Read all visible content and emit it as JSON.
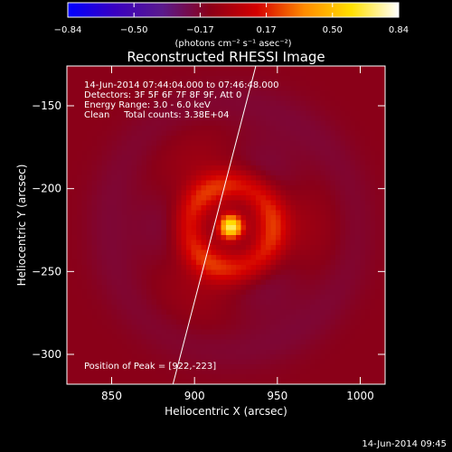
{
  "colorbar": {
    "tick_labels": [
      "−0.84",
      "−0.50",
      "−0.17",
      "0.17",
      "0.50",
      "0.84"
    ],
    "units": "(photons cm⁻² s⁻¹ asec⁻²)",
    "range": [
      -0.84,
      0.84
    ],
    "stops": [
      "#0000ff",
      "#3a00c0",
      "#5a1a8c",
      "#8a0018",
      "#d40000",
      "#ff8a00",
      "#ffe000",
      "#ffffff"
    ]
  },
  "image": {
    "title": "Reconstructed RHESSI Image",
    "annotations": [
      "14-Jun-2014 07:44:04.000 to 07:46:48.000",
      "Detectors: 3F 5F 6F 7F 8F 9F, Att 0",
      "Energy Range: 3.0 - 6.0 keV",
      "Clean     Total counts: 3.38E+04"
    ],
    "peak_text": "Position of Peak = [922,-223]"
  },
  "footer": {
    "timestamp": "14-Jun-2014 09:45"
  },
  "chart_data": {
    "type": "heatmap",
    "title": "Reconstructed RHESSI Image",
    "xlabel": "Heliocentric X (arcsec)",
    "ylabel": "Heliocentric Y (arcsec)",
    "xlim": [
      823,
      1015
    ],
    "ylim": [
      -318,
      -126
    ],
    "xticks": [
      850,
      900,
      950,
      1000
    ],
    "yticks": [
      -150,
      -200,
      -250,
      -300
    ],
    "peak": {
      "x": 922,
      "y": -223,
      "value": 0.84
    },
    "limb_line": [
      [
        887,
        -318
      ],
      [
        937,
        -126
      ]
    ],
    "structure": {
      "core_sigma": 5,
      "inner_ring_radius": 25,
      "outer_ring_radius": 75,
      "background_value": -0.25
    }
  }
}
